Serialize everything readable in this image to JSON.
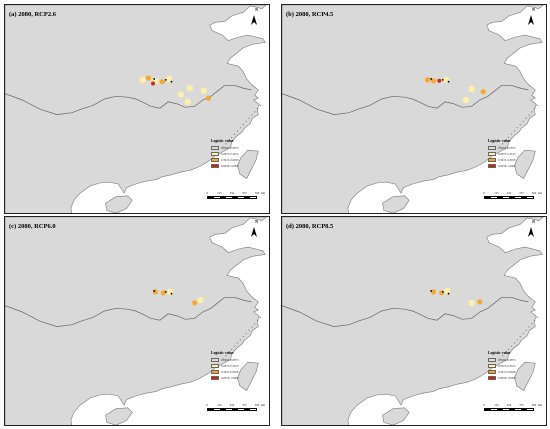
{
  "panels": [
    {
      "title": "(a) 2080, RCP2.6",
      "hotspots": [
        {
          "lon": 113.0,
          "lat": 32.7,
          "level": 2
        },
        {
          "lon": 112.4,
          "lat": 33.0,
          "level": 3
        },
        {
          "lon": 113.6,
          "lat": 32.6,
          "level": 3
        },
        {
          "lon": 112.8,
          "lat": 32.4,
          "level": 4
        },
        {
          "lon": 114.2,
          "lat": 32.9,
          "level": 2
        },
        {
          "lon": 111.9,
          "lat": 32.8,
          "level": 2
        },
        {
          "lon": 116.0,
          "lat": 31.9,
          "level": 2
        },
        {
          "lon": 117.2,
          "lat": 31.6,
          "level": 2
        },
        {
          "lon": 115.8,
          "lat": 30.4,
          "level": 2
        },
        {
          "lon": 115.2,
          "lat": 31.2,
          "level": 2
        },
        {
          "lon": 117.6,
          "lat": 30.8,
          "level": 3
        }
      ]
    },
    {
      "title": "(b) 2080, RCP4.5",
      "hotspots": [
        {
          "lon": 113.1,
          "lat": 32.7,
          "level": 3
        },
        {
          "lon": 113.6,
          "lat": 32.7,
          "level": 4
        },
        {
          "lon": 112.6,
          "lat": 32.8,
          "level": 3
        },
        {
          "lon": 114.2,
          "lat": 32.8,
          "level": 2
        },
        {
          "lon": 116.4,
          "lat": 31.8,
          "level": 2
        },
        {
          "lon": 117.4,
          "lat": 31.5,
          "level": 3
        },
        {
          "lon": 115.9,
          "lat": 30.6,
          "level": 2
        }
      ]
    },
    {
      "title": "(c) 2080, RCP6.0",
      "hotspots": [
        {
          "lon": 113.0,
          "lat": 32.8,
          "level": 3
        },
        {
          "lon": 113.7,
          "lat": 32.7,
          "level": 3
        },
        {
          "lon": 114.3,
          "lat": 32.8,
          "level": 2
        },
        {
          "lon": 116.4,
          "lat": 31.6,
          "level": 3
        },
        {
          "lon": 116.9,
          "lat": 31.9,
          "level": 2
        }
      ]
    },
    {
      "title": "(d) 2080, RCP8.5",
      "hotspots": [
        {
          "lon": 113.1,
          "lat": 32.8,
          "level": 3
        },
        {
          "lon": 113.8,
          "lat": 32.7,
          "level": 3
        },
        {
          "lon": 114.3,
          "lat": 32.9,
          "level": 2
        },
        {
          "lon": 116.4,
          "lat": 31.6,
          "level": 2
        },
        {
          "lon": 117.1,
          "lat": 31.7,
          "level": 3
        }
      ]
    }
  ],
  "north_label": "N",
  "legend": {
    "title": "Logistic value",
    "classes": [
      {
        "label": "0.0000-0.0873",
        "color": "#dcdcdc"
      },
      {
        "label": "0.0873-0.3915",
        "color": "#fdf0a8"
      },
      {
        "label": "0.3915-0.6958",
        "color": "#f5a623"
      },
      {
        "label": "0.6958-1.0000",
        "color": "#d81e05"
      }
    ]
  },
  "scale": {
    "ticks": [
      "0",
      "125",
      "250",
      "375",
      "500"
    ],
    "units": "km"
  },
  "colors": {
    "land": "#d9d9d9",
    "land_stroke": "#7a7a7a",
    "sea": "#ffffff",
    "river": "#666666",
    "black_dot": "#000000"
  }
}
